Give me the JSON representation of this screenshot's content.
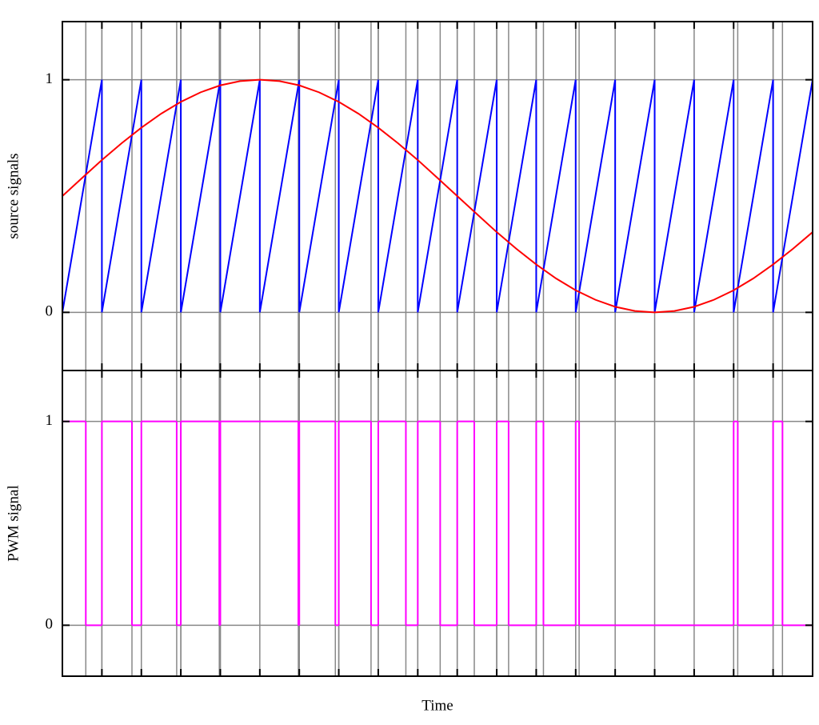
{
  "chart_data": [
    {
      "type": "line",
      "ylabel": "source signals",
      "xlim": [
        0,
        19
      ],
      "xticks": [
        0,
        1,
        2,
        3,
        4,
        5,
        6,
        7,
        8,
        9,
        10,
        11,
        12,
        13,
        14,
        15,
        16,
        17,
        18,
        19
      ],
      "ylim": [
        -0.25,
        1.25
      ],
      "yticks": [
        0,
        1
      ],
      "grid": true,
      "series": [
        {
          "color": "#0000ff",
          "x": [
            0,
            1,
            1,
            2,
            2,
            3,
            3,
            4,
            4,
            5,
            5,
            6,
            6,
            7,
            7,
            8,
            8,
            9,
            9,
            10,
            10,
            11,
            11,
            12,
            12,
            13,
            13,
            14,
            14,
            15,
            15,
            16,
            16,
            17,
            17,
            18,
            18,
            19
          ],
          "values": [
            0,
            1,
            0,
            1,
            0,
            1,
            0,
            1,
            0,
            1,
            0,
            1,
            0,
            1,
            0,
            1,
            0,
            1,
            0,
            1,
            0,
            1,
            0,
            1,
            0,
            1,
            0,
            1,
            0,
            1,
            0,
            1,
            0,
            1,
            0,
            1,
            0,
            1
          ]
        },
        {
          "color": "#ff0000",
          "x": [
            0,
            0.5,
            1,
            1.5,
            2,
            2.5,
            3,
            3.5,
            4,
            4.5,
            5,
            5.5,
            6,
            6.5,
            7,
            7.5,
            8,
            8.5,
            9,
            9.5,
            10,
            10.5,
            11,
            11.5,
            12,
            12.5,
            13,
            13.5,
            14,
            14.5,
            15,
            15.5,
            16,
            16.5,
            17,
            17.5,
            18,
            18.5,
            19
          ],
          "values": [
            0.5,
            0.578,
            0.655,
            0.727,
            0.794,
            0.854,
            0.905,
            0.946,
            0.976,
            0.994,
            1,
            0.994,
            0.976,
            0.946,
            0.905,
            0.854,
            0.794,
            0.727,
            0.655,
            0.578,
            0.5,
            0.422,
            0.345,
            0.273,
            0.206,
            0.146,
            0.095,
            0.054,
            0.024,
            0.006,
            0,
            0.006,
            0.024,
            0.054,
            0.095,
            0.146,
            0.206,
            0.273,
            0.345
          ]
        }
      ]
    },
    {
      "type": "step",
      "ylabel": "PWM signal",
      "xlabel": "Time",
      "xlim": [
        0,
        19
      ],
      "xticks": [
        0,
        1,
        2,
        3,
        4,
        5,
        6,
        7,
        8,
        9,
        10,
        11,
        12,
        13,
        14,
        15,
        16,
        17,
        18,
        19
      ],
      "ylim": [
        -0.25,
        1.25
      ],
      "yticks": [
        0,
        1
      ],
      "grid": true,
      "series": [
        {
          "color": "#ff00ff",
          "x": [
            0,
            0.593,
            1,
            1.762,
            2,
            2.895,
            3,
            3.974,
            4,
            5.976,
            6,
            6.913,
            7,
            7.817,
            8,
            8.699,
            9,
            9.568,
            10,
            10.432,
            11,
            11.301,
            12,
            12.183,
            13,
            13.087,
            17,
            17.104,
            18,
            18.237
          ],
          "values": [
            1,
            0,
            1,
            0,
            1,
            0,
            1,
            0,
            1,
            0,
            1,
            0,
            1,
            0,
            1,
            0,
            1,
            0,
            1,
            0,
            1,
            0,
            1,
            0,
            1,
            0,
            1,
            0,
            1,
            0
          ]
        }
      ]
    }
  ]
}
